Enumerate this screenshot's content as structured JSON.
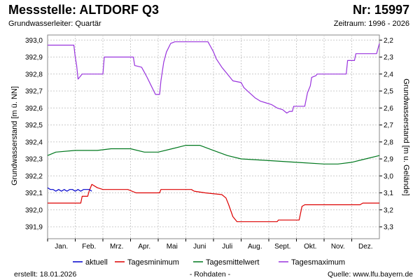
{
  "header": {
    "title": "Messstelle: ALTDORF Q3",
    "number": "Nr: 15997",
    "aquifer": "Grundwasserleiter: Quartär",
    "period": "Zeitraum: 1996 - 2026"
  },
  "footer": {
    "created": "erstellt:  18.01.2026",
    "rawdata": "- Rohdaten -",
    "source": "Quelle: www.lfu.bayern.de"
  },
  "chart_data": {
    "type": "line",
    "ylabel": "Grundwasserstand [m ü. NN]",
    "ylabel_right": "Grundwasserstand [m u. Gelände]",
    "ylim": [
      391.83,
      393.03
    ],
    "yticks": [
      391.9,
      392.0,
      392.1,
      392.2,
      392.3,
      392.4,
      392.5,
      392.6,
      392.7,
      392.8,
      392.9,
      393.0
    ],
    "ytick_labels": [
      "391,9",
      "392,0",
      "392,1",
      "392,2",
      "392,3",
      "392,4",
      "392,5",
      "392,6",
      "392,7",
      "392,8",
      "392,9",
      "393,0"
    ],
    "y2_offset": 395.2,
    "y2ticks": [
      2.2,
      2.3,
      2.4,
      2.5,
      2.6,
      2.7,
      2.8,
      2.9,
      3.0,
      3.1,
      3.2,
      3.3
    ],
    "y2tick_labels": [
      "2,2",
      "2,3",
      "2,4",
      "2,5",
      "2,6",
      "2,7",
      "2,8",
      "2,9",
      "3,0",
      "3,1",
      "3,2",
      "3,3"
    ],
    "xlim": [
      0,
      12
    ],
    "months": [
      "Jan.",
      "Feb.",
      "Mrz.",
      "Apr.",
      "Mai",
      "Juni",
      "Juli",
      "Aug.",
      "Sept.",
      "Okt.",
      "Nov.",
      "Dez."
    ],
    "grid": true,
    "legend_position": "bottom",
    "series": [
      {
        "name": "aktuell",
        "color": "#0000cc",
        "points": [
          [
            0,
            392.13
          ],
          [
            0.1,
            392.12
          ],
          [
            0.2,
            392.12
          ],
          [
            0.3,
            392.11
          ],
          [
            0.4,
            392.12
          ],
          [
            0.5,
            392.11
          ],
          [
            0.6,
            392.12
          ],
          [
            0.7,
            392.11
          ],
          [
            0.8,
            392.12
          ],
          [
            0.9,
            392.12
          ],
          [
            1.0,
            392.11
          ],
          [
            1.1,
            392.12
          ],
          [
            1.2,
            392.11
          ],
          [
            1.3,
            392.12
          ],
          [
            1.4,
            392.12
          ],
          [
            1.5,
            392.12
          ],
          [
            1.6,
            392.11
          ]
        ]
      },
      {
        "name": "Tagesminimum",
        "color": "#dd0000",
        "points": [
          [
            0,
            392.04
          ],
          [
            1.2,
            392.04
          ],
          [
            1.25,
            392.08
          ],
          [
            1.45,
            392.08
          ],
          [
            1.5,
            392.11
          ],
          [
            1.6,
            392.15
          ],
          [
            1.8,
            392.13
          ],
          [
            2.0,
            392.12
          ],
          [
            2.9,
            392.12
          ],
          [
            3.2,
            392.1
          ],
          [
            3.9,
            392.1
          ],
          [
            4.05,
            392.1
          ],
          [
            4.1,
            392.12
          ],
          [
            5.2,
            392.12
          ],
          [
            5.3,
            392.11
          ],
          [
            5.7,
            392.1
          ],
          [
            6.3,
            392.09
          ],
          [
            6.45,
            392.07
          ],
          [
            6.55,
            392.03
          ],
          [
            6.7,
            391.96
          ],
          [
            6.85,
            391.93
          ],
          [
            8.3,
            391.93
          ],
          [
            8.35,
            391.94
          ],
          [
            9.1,
            391.94
          ],
          [
            9.2,
            392.02
          ],
          [
            9.3,
            392.03
          ],
          [
            11.3,
            392.03
          ],
          [
            11.4,
            392.04
          ],
          [
            12.0,
            392.04
          ]
        ]
      },
      {
        "name": "Tagesmittelwert",
        "color": "#00781e",
        "points": [
          [
            0,
            392.32
          ],
          [
            0.3,
            392.34
          ],
          [
            1.0,
            392.35
          ],
          [
            1.8,
            392.35
          ],
          [
            2.3,
            392.36
          ],
          [
            3.0,
            392.36
          ],
          [
            3.5,
            392.34
          ],
          [
            4.0,
            392.34
          ],
          [
            4.5,
            392.36
          ],
          [
            5.0,
            392.38
          ],
          [
            5.5,
            392.38
          ],
          [
            6.0,
            392.35
          ],
          [
            6.5,
            392.32
          ],
          [
            7.0,
            392.3
          ],
          [
            8.0,
            392.29
          ],
          [
            9.0,
            392.28
          ],
          [
            10.0,
            392.27
          ],
          [
            10.5,
            392.27
          ],
          [
            11.0,
            392.28
          ],
          [
            11.5,
            392.3
          ],
          [
            12.0,
            392.32
          ]
        ]
      },
      {
        "name": "Tagesmaximum",
        "color": "#9933dd",
        "points": [
          [
            0,
            392.97
          ],
          [
            0.95,
            392.97
          ],
          [
            1.0,
            392.9
          ],
          [
            1.05,
            392.85
          ],
          [
            1.1,
            392.77
          ],
          [
            1.2,
            392.79
          ],
          [
            1.25,
            392.8
          ],
          [
            2.0,
            392.8
          ],
          [
            2.05,
            392.9
          ],
          [
            3.1,
            392.9
          ],
          [
            3.15,
            392.85
          ],
          [
            3.4,
            392.84
          ],
          [
            3.5,
            392.81
          ],
          [
            3.6,
            392.78
          ],
          [
            3.75,
            392.73
          ],
          [
            3.9,
            392.68
          ],
          [
            4.05,
            392.68
          ],
          [
            4.1,
            392.76
          ],
          [
            4.2,
            392.87
          ],
          [
            4.3,
            392.93
          ],
          [
            4.45,
            392.98
          ],
          [
            4.6,
            392.99
          ],
          [
            5.8,
            392.99
          ],
          [
            5.9,
            392.96
          ],
          [
            6.0,
            392.93
          ],
          [
            6.1,
            392.89
          ],
          [
            6.3,
            392.84
          ],
          [
            6.5,
            392.8
          ],
          [
            6.7,
            392.76
          ],
          [
            7.0,
            392.75
          ],
          [
            7.1,
            392.72
          ],
          [
            7.3,
            392.69
          ],
          [
            7.5,
            392.66
          ],
          [
            7.7,
            392.64
          ],
          [
            7.9,
            392.63
          ],
          [
            8.1,
            392.62
          ],
          [
            8.3,
            392.6
          ],
          [
            8.5,
            392.59
          ],
          [
            8.65,
            392.57
          ],
          [
            8.75,
            392.58
          ],
          [
            8.85,
            392.58
          ],
          [
            8.9,
            392.61
          ],
          [
            9.3,
            392.61
          ],
          [
            9.4,
            392.69
          ],
          [
            9.5,
            392.73
          ],
          [
            9.55,
            392.78
          ],
          [
            9.7,
            392.79
          ],
          [
            9.75,
            392.8
          ],
          [
            10.8,
            392.8
          ],
          [
            10.85,
            392.88
          ],
          [
            11.1,
            392.88
          ],
          [
            11.15,
            392.92
          ],
          [
            11.9,
            392.92
          ],
          [
            12.0,
            392.98
          ]
        ]
      }
    ]
  }
}
